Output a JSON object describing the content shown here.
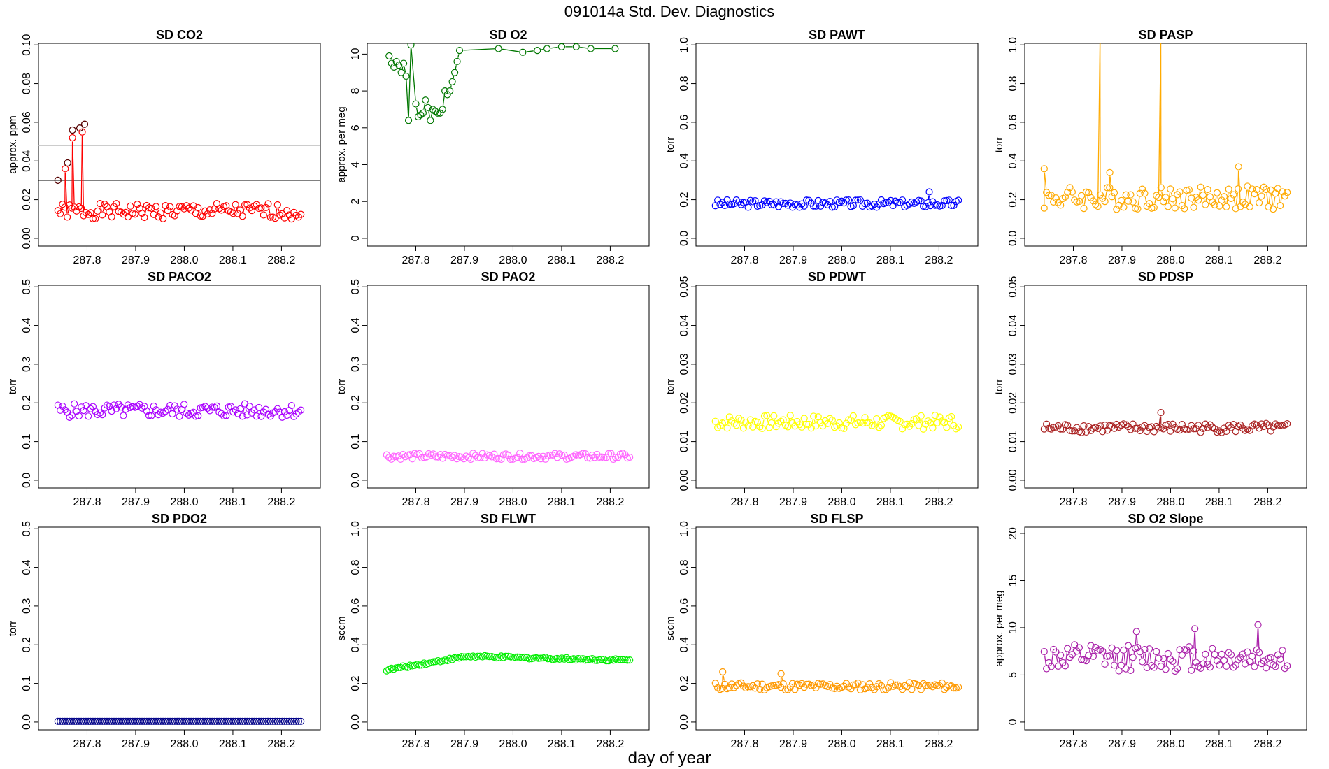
{
  "title": "091014a   Std. Dev. Diagnostics",
  "xlabel": "day of year",
  "chart_data": [
    {
      "type": "scatter",
      "title": "SD CO2",
      "ylabel": "approx. ppm",
      "color": "#ff0000",
      "ylim": [
        0,
        0.1
      ],
      "yticks": [
        "0.00",
        "0.02",
        "0.04",
        "0.06",
        "0.08",
        "0.10"
      ],
      "xticks": [
        "287.8",
        "287.9",
        "288.0",
        "288.1",
        "288.2"
      ],
      "hlines": [
        {
          "y": 0.03,
          "color": "#000000"
        },
        {
          "y": 0.048,
          "color": "#bbbbbb"
        }
      ],
      "outlier_color": "#550000",
      "outliers": [
        [
          287.74,
          0.03
        ],
        [
          287.76,
          0.039
        ],
        [
          287.77,
          0.056
        ],
        [
          287.785,
          0.057
        ],
        [
          287.795,
          0.059
        ]
      ],
      "pattern": {
        "base": 0.014,
        "amp": 0.004,
        "seed": 1
      },
      "x_range": [
        287.74,
        288.24
      ],
      "n": 105,
      "spikes": [
        [
          287.755,
          0.036
        ],
        [
          287.77,
          0.052
        ],
        [
          287.79,
          0.055
        ]
      ]
    },
    {
      "type": "scatter",
      "title": "SD O2",
      "ylabel": "approx. per meg",
      "color": "#007700",
      "ylim": [
        0,
        10.5
      ],
      "yticks": [
        "0",
        "2",
        "4",
        "6",
        "8",
        "10"
      ],
      "xticks": [
        "287.8",
        "287.9",
        "288.0",
        "288.1",
        "288.2"
      ],
      "clip": true,
      "segments": [
        [
          287.745,
          9.9
        ],
        [
          287.75,
          9.5
        ],
        [
          287.755,
          9.3
        ],
        [
          287.76,
          9.6
        ],
        [
          287.765,
          9.4
        ],
        [
          287.77,
          9.0
        ],
        [
          287.775,
          9.5
        ],
        [
          287.78,
          8.8
        ],
        [
          287.785,
          6.4
        ],
        [
          287.79,
          10.5
        ],
        [
          287.8,
          7.3
        ],
        [
          287.805,
          6.6
        ],
        [
          287.81,
          6.7
        ],
        [
          287.815,
          6.8
        ],
        [
          287.82,
          7.5
        ],
        [
          287.825,
          7.1
        ],
        [
          287.83,
          6.4
        ],
        [
          287.835,
          7.0
        ],
        [
          287.84,
          6.9
        ],
        [
          287.845,
          6.8
        ],
        [
          287.85,
          6.8
        ],
        [
          287.855,
          7.0
        ],
        [
          287.86,
          8.0
        ],
        [
          287.865,
          7.8
        ],
        [
          287.87,
          8.0
        ],
        [
          287.875,
          8.5
        ],
        [
          287.88,
          9.0
        ],
        [
          287.885,
          9.6
        ],
        [
          287.89,
          10.2
        ],
        [
          287.97,
          10.3
        ],
        [
          288.02,
          10.1
        ],
        [
          288.05,
          10.2
        ],
        [
          288.07,
          10.3
        ],
        [
          288.1,
          10.4
        ],
        [
          288.13,
          10.4
        ],
        [
          288.16,
          10.3
        ],
        [
          288.21,
          10.3
        ]
      ],
      "x_range": [
        287.74,
        288.24
      ]
    },
    {
      "type": "scatter",
      "title": "SD PAWT",
      "ylabel": "torr",
      "color": "#0000ff",
      "ylim": [
        0,
        1.0
      ],
      "yticks": [
        "0.0",
        "0.2",
        "0.4",
        "0.6",
        "0.8",
        "1.0"
      ],
      "xticks": [
        "287.8",
        "287.9",
        "288.0",
        "288.1",
        "288.2"
      ],
      "pattern": {
        "base": 0.18,
        "amp": 0.02,
        "seed": 3
      },
      "x_range": [
        287.74,
        288.24
      ],
      "n": 105,
      "spikes": [
        [
          288.18,
          0.24
        ]
      ]
    },
    {
      "type": "scatter",
      "title": "SD PASP",
      "ylabel": "torr",
      "color": "#ffaa00",
      "ylim": [
        0,
        1.0
      ],
      "yticks": [
        "0.0",
        "0.2",
        "0.4",
        "0.6",
        "0.8",
        "1.0"
      ],
      "xticks": [
        "287.8",
        "287.9",
        "288.0",
        "288.1",
        "288.2"
      ],
      "pattern": {
        "base": 0.21,
        "amp": 0.06,
        "seed": 4
      },
      "x_range": [
        287.74,
        288.24
      ],
      "n": 105,
      "spikes": [
        [
          287.855,
          1.05
        ],
        [
          287.98,
          1.05
        ],
        [
          287.74,
          0.36
        ],
        [
          287.875,
          0.34
        ],
        [
          288.14,
          0.37
        ]
      ]
    },
    {
      "type": "scatter",
      "title": "SD PACO2",
      "ylabel": "torr",
      "color": "#aa00ff",
      "ylim": [
        0,
        0.5
      ],
      "yticks": [
        "0.0",
        "0.1",
        "0.2",
        "0.3",
        "0.4",
        "0.5"
      ],
      "xticks": [
        "287.8",
        "287.9",
        "288.0",
        "288.1",
        "288.2"
      ],
      "pattern": {
        "base": 0.18,
        "amp": 0.018,
        "seed": 5
      },
      "x_range": [
        287.74,
        288.24
      ],
      "n": 105
    },
    {
      "type": "scatter",
      "title": "SD PAO2",
      "ylabel": "torr",
      "color": "#ff66ff",
      "ylim": [
        0,
        0.5
      ],
      "yticks": [
        "0.0",
        "0.1",
        "0.2",
        "0.3",
        "0.4",
        "0.5"
      ],
      "xticks": [
        "287.8",
        "287.9",
        "288.0",
        "288.1",
        "288.2"
      ],
      "pattern": {
        "base": 0.062,
        "amp": 0.008,
        "seed": 6
      },
      "x_range": [
        287.74,
        288.24
      ],
      "n": 105
    },
    {
      "type": "scatter",
      "title": "SD PDWT",
      "ylabel": "torr",
      "color": "#ffff00",
      "ylim": [
        0,
        0.05
      ],
      "yticks": [
        "0.00",
        "0.01",
        "0.02",
        "0.03",
        "0.04",
        "0.05"
      ],
      "xticks": [
        "287.8",
        "287.9",
        "288.0",
        "288.1",
        "288.2"
      ],
      "pattern": {
        "base": 0.015,
        "amp": 0.0018,
        "seed": 7
      },
      "x_range": [
        287.74,
        288.24
      ],
      "n": 105
    },
    {
      "type": "scatter",
      "title": "SD PDSP",
      "ylabel": "torr",
      "color": "#aa2222",
      "ylim": [
        0,
        0.05
      ],
      "yticks": [
        "0.00",
        "0.01",
        "0.02",
        "0.03",
        "0.04",
        "0.05"
      ],
      "xticks": [
        "287.8",
        "287.9",
        "288.0",
        "288.1",
        "288.2"
      ],
      "pattern": {
        "base": 0.0135,
        "amp": 0.0012,
        "seed": 8
      },
      "x_range": [
        287.74,
        288.24
      ],
      "n": 105,
      "spikes": [
        [
          287.98,
          0.0175
        ]
      ]
    },
    {
      "type": "scatter",
      "title": "SD PDO2",
      "ylabel": "torr",
      "color": "#000088",
      "ylim": [
        0,
        0.5
      ],
      "yticks": [
        "0.0",
        "0.1",
        "0.2",
        "0.3",
        "0.4",
        "0.5"
      ],
      "xticks": [
        "287.8",
        "287.9",
        "288.0",
        "288.1",
        "288.2"
      ],
      "pattern": {
        "base": 0.002,
        "amp": 0.0,
        "seed": 9
      },
      "x_range": [
        287.74,
        288.24
      ],
      "n": 105
    },
    {
      "type": "scatter",
      "title": "SD FLWT",
      "ylabel": "sccm",
      "color": "#00ee00",
      "ylim": [
        0,
        1.0
      ],
      "yticks": [
        "0.0",
        "0.2",
        "0.4",
        "0.6",
        "0.8",
        "1.0"
      ],
      "xticks": [
        "287.8",
        "287.9",
        "288.0",
        "288.1",
        "288.2"
      ],
      "pattern": {
        "base": 0.32,
        "amp": 0.006,
        "seed": 10,
        "trend": [
          0.27,
          0.34,
          0.32
        ]
      },
      "x_range": [
        287.74,
        288.24
      ],
      "n": 105
    },
    {
      "type": "scatter",
      "title": "SD FLSP",
      "ylabel": "sccm",
      "color": "#ff9900",
      "ylim": [
        0,
        1.0
      ],
      "yticks": [
        "0.0",
        "0.2",
        "0.4",
        "0.6",
        "0.8",
        "1.0"
      ],
      "xticks": [
        "287.8",
        "287.9",
        "288.0",
        "288.1",
        "288.2"
      ],
      "pattern": {
        "base": 0.185,
        "amp": 0.02,
        "seed": 11
      },
      "x_range": [
        287.74,
        288.24
      ],
      "n": 105,
      "spikes": [
        [
          287.755,
          0.26
        ],
        [
          287.875,
          0.25
        ]
      ]
    },
    {
      "type": "scatter",
      "title": "SD O2 Slope",
      "ylabel": "approx. per meg",
      "color": "#aa22aa",
      "ylim": [
        0,
        20.5
      ],
      "yticks": [
        "0",
        "5",
        "10",
        "15",
        "20"
      ],
      "xticks": [
        "287.8",
        "287.9",
        "288.0",
        "288.1",
        "288.2"
      ],
      "pattern": {
        "base": 6.8,
        "amp": 1.4,
        "seed": 12
      },
      "x_range": [
        287.74,
        288.24
      ],
      "n": 105,
      "spikes": [
        [
          288.05,
          9.9
        ],
        [
          288.18,
          10.3
        ],
        [
          287.93,
          9.6
        ]
      ]
    }
  ]
}
